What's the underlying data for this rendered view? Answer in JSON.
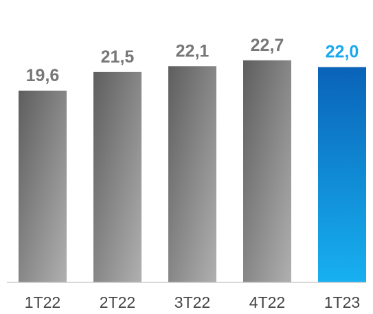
{
  "chart_data": {
    "type": "bar",
    "title": "",
    "xlabel": "",
    "ylabel": "",
    "categories": [
      "1T22",
      "2T22",
      "3T22",
      "4T22",
      "1T23"
    ],
    "series": [
      {
        "values": [
          19.6,
          21.5,
          22.1,
          22.7,
          22.0
        ]
      }
    ],
    "value_labels": [
      "19,6",
      "21,5",
      "22,1",
      "22,7",
      "22,0"
    ],
    "highlight_index": 4,
    "ylim": [
      0,
      25
    ],
    "grid": false,
    "legend": "none",
    "colors": {
      "bar_dark": "#5e5e5e",
      "bar_light": "#b0b0b0",
      "highlight_top": "#0a63b8",
      "highlight_bottom": "#17b0f0",
      "label_default": "#777777",
      "label_highlight": "#17a8ee",
      "axis": "#cccccc"
    }
  }
}
